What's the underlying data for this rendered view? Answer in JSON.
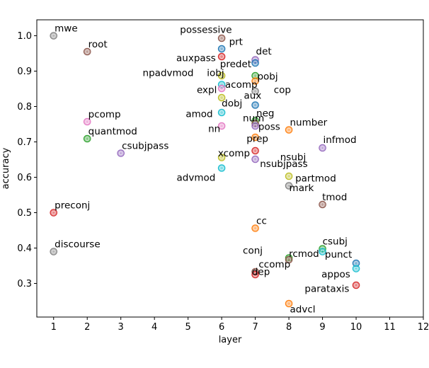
{
  "chart_data": {
    "type": "scatter",
    "xlabel": "layer",
    "ylabel": "accuracy",
    "xlim": [
      0.5,
      12
    ],
    "ylim": [
      0.205,
      1.045
    ],
    "xticks": [
      1,
      2,
      3,
      4,
      5,
      6,
      7,
      8,
      9,
      10,
      11,
      12
    ],
    "yticks": [
      0.3,
      0.4,
      0.5,
      0.6,
      0.7,
      0.8,
      0.9,
      1.0
    ],
    "ytick_labels": [
      "0.3",
      "0.4",
      "0.5",
      "0.6",
      "0.7",
      "0.8",
      "0.9",
      "1.0"
    ],
    "grid": false,
    "points": [
      {
        "label": "mwe",
        "x": 1,
        "y": 1.0,
        "color": "#7f7f7f"
      },
      {
        "label": "root",
        "x": 2,
        "y": 0.955,
        "color": "#8c564b"
      },
      {
        "label": "preconj",
        "x": 1,
        "y": 0.5,
        "color": "#d62728"
      },
      {
        "label": "discourse",
        "x": 1,
        "y": 0.39,
        "color": "#7f7f7f"
      },
      {
        "label": "pcomp",
        "x": 2,
        "y": 0.757,
        "color": "#e377c2"
      },
      {
        "label": "quantmod",
        "x": 2,
        "y": 0.709,
        "color": "#2ca02c"
      },
      {
        "label": "csubjpass",
        "x": 3,
        "y": 0.668,
        "color": "#9467bd"
      },
      {
        "label": "possessive",
        "x": 6,
        "y": 0.993,
        "color": "#8c564b"
      },
      {
        "label": "prt",
        "x": 6,
        "y": 0.963,
        "color": "#1f77b4"
      },
      {
        "label": "auxpass",
        "x": 6,
        "y": 0.941,
        "color": "#d62728"
      },
      {
        "label": "npadvmod",
        "x": 6,
        "y": 0.887,
        "color": "#bcbd22"
      },
      {
        "label": "iobj",
        "x": 6,
        "y": 0.862,
        "color": "#17becf"
      },
      {
        "label": "expl",
        "x": 6,
        "y": 0.851,
        "color": "#e377c2"
      },
      {
        "label": "dobj",
        "x": 6,
        "y": 0.825,
        "color": "#bcbd22"
      },
      {
        "label": "amod",
        "x": 6,
        "y": 0.783,
        "color": "#17becf"
      },
      {
        "label": "nn",
        "x": 6,
        "y": 0.745,
        "color": "#e377c2"
      },
      {
        "label": "xcomp",
        "x": 6,
        "y": 0.656,
        "color": "#bcbd22"
      },
      {
        "label": "advmod",
        "x": 6,
        "y": 0.626,
        "color": "#17becf"
      },
      {
        "label": "det",
        "x": 7,
        "y": 0.932,
        "color": "#9467bd"
      },
      {
        "label": "predet",
        "x": 7,
        "y": 0.923,
        "color": "#1f77b4"
      },
      {
        "label": "pobj",
        "x": 7,
        "y": 0.887,
        "color": "#2ca02c"
      },
      {
        "label": "acomp",
        "x": 7,
        "y": 0.872,
        "color": "#ff7f0e"
      },
      {
        "label": "cop",
        "x": 7,
        "y": 0.843,
        "color": "#7f7f7f"
      },
      {
        "label": "aux",
        "x": 7,
        "y": 0.804,
        "color": "#1f77b4"
      },
      {
        "label": "neg",
        "x": 7,
        "y": 0.76,
        "color": "#2ca02c"
      },
      {
        "label": "num",
        "x": 7,
        "y": 0.752,
        "color": "#8c564b"
      },
      {
        "label": "poss",
        "x": 7,
        "y": 0.745,
        "color": "#9467bd"
      },
      {
        "label": "prep",
        "x": 7,
        "y": 0.713,
        "color": "#ff7f0e"
      },
      {
        "label": "csubj",
        "x": 7,
        "y": 0.675,
        "color": "#d62728"
      },
      {
        "label": "nsubjpass",
        "x": 7,
        "y": 0.651,
        "color": "#9467bd"
      },
      {
        "label": "cc",
        "x": 7,
        "y": 0.456,
        "color": "#ff7f0e"
      },
      {
        "label": "ccomp",
        "x": 7,
        "y": 0.333,
        "color": "#8c564b"
      },
      {
        "label": "dep",
        "x": 7,
        "y": 0.325,
        "color": "#d62728"
      },
      {
        "label": "number",
        "x": 8,
        "y": 0.734,
        "color": "#ff7f0e"
      },
      {
        "label": "nsubj",
        "x": 8,
        "y": 0.603,
        "color": "#bcbd22"
      },
      {
        "label": "mark",
        "x": 8,
        "y": 0.576,
        "color": "#7f7f7f"
      },
      {
        "label": "conj",
        "x": 8,
        "y": 0.372,
        "color": "#2ca02c"
      },
      {
        "label": "rcmod",
        "x": 8,
        "y": 0.367,
        "color": "#8c564b"
      },
      {
        "label": "advcl",
        "x": 8,
        "y": 0.243,
        "color": "#ff7f0e"
      },
      {
        "label": "infmod",
        "x": 9,
        "y": 0.683,
        "color": "#9467bd"
      },
      {
        "label": "partmod",
        "x": 9,
        "y": 0.523,
        "color": "#8c564b"
      },
      {
        "label": "tmod",
        "x": 9,
        "y": 0.398,
        "color": "#2ca02c"
      },
      {
        "label": "punct",
        "x": 9,
        "y": 0.39,
        "color": "#17becf"
      },
      {
        "label": "appos",
        "x": 10,
        "y": 0.357,
        "color": "#1f77b4"
      },
      {
        "label": "parataxis",
        "x": 10,
        "y": 0.342,
        "color": "#17becf"
      },
      {
        "label": "",
        "x": 10,
        "y": 0.295,
        "color": "#d62728"
      }
    ],
    "labels": [
      {
        "text": "mwe",
        "x": 1.03,
        "y": 1.012
      },
      {
        "text": "root",
        "x": 2.03,
        "y": 0.967
      },
      {
        "text": "preconj",
        "x": 1.03,
        "y": 0.512
      },
      {
        "text": "discourse",
        "x": 1.03,
        "y": 0.402
      },
      {
        "text": "pcomp",
        "x": 2.03,
        "y": 0.769
      },
      {
        "text": "quantmod",
        "x": 2.03,
        "y": 0.721
      },
      {
        "text": "csubjpass",
        "x": 3.03,
        "y": 0.68
      },
      {
        "text": "possessive",
        "x": 4.76,
        "y": 1.008
      },
      {
        "text": "prt",
        "x": 6.22,
        "y": 0.974
      },
      {
        "text": "auxpass",
        "x": 4.65,
        "y": 0.928
      },
      {
        "text": "predet",
        "x": 5.95,
        "y": 0.911
      },
      {
        "text": "det",
        "x": 7.02,
        "y": 0.947
      },
      {
        "text": "npadvmod",
        "x": 3.65,
        "y": 0.886
      },
      {
        "text": "iobj",
        "x": 5.56,
        "y": 0.886
      },
      {
        "text": "pobj",
        "x": 7.06,
        "y": 0.876
      },
      {
        "text": "acomp",
        "x": 6.1,
        "y": 0.853
      },
      {
        "text": "expl",
        "x": 5.26,
        "y": 0.838
      },
      {
        "text": "cop",
        "x": 7.55,
        "y": 0.838
      },
      {
        "text": "aux",
        "x": 6.66,
        "y": 0.822
      },
      {
        "text": "dobj",
        "x": 6.0,
        "y": 0.8
      },
      {
        "text": "amod",
        "x": 4.93,
        "y": 0.77
      },
      {
        "text": "neg",
        "x": 7.03,
        "y": 0.772
      },
      {
        "text": "num",
        "x": 6.63,
        "y": 0.758
      },
      {
        "text": "number",
        "x": 8.03,
        "y": 0.746
      },
      {
        "text": "poss",
        "x": 7.09,
        "y": 0.734
      },
      {
        "text": "nn",
        "x": 5.6,
        "y": 0.728
      },
      {
        "text": "prep",
        "x": 6.74,
        "y": 0.7
      },
      {
        "text": "infmod",
        "x": 9.02,
        "y": 0.697
      },
      {
        "text": "nsubj",
        "x": 7.74,
        "y": 0.648
      },
      {
        "text": "xcomp",
        "x": 5.89,
        "y": 0.659
      },
      {
        "text": "nsubjpass",
        "x": 7.14,
        "y": 0.629
      },
      {
        "text": "partmod",
        "x": 8.19,
        "y": 0.588
      },
      {
        "text": "advmod",
        "x": 4.66,
        "y": 0.59
      },
      {
        "text": "mark",
        "x": 8.01,
        "y": 0.561
      },
      {
        "text": "tmod",
        "x": 8.99,
        "y": 0.535
      },
      {
        "text": "cc",
        "x": 7.03,
        "y": 0.468
      },
      {
        "text": "csubj",
        "x": 9.0,
        "y": 0.41
      },
      {
        "text": "conj",
        "x": 6.63,
        "y": 0.384
      },
      {
        "text": "rcmod",
        "x": 8.0,
        "y": 0.375
      },
      {
        "text": "punct",
        "x": 9.07,
        "y": 0.373
      },
      {
        "text": "ccomp",
        "x": 7.1,
        "y": 0.345
      },
      {
        "text": "dep",
        "x": 6.9,
        "y": 0.324
      },
      {
        "text": "appos",
        "x": 8.97,
        "y": 0.317
      },
      {
        "text": "parataxis",
        "x": 8.47,
        "y": 0.276
      },
      {
        "text": "advcl",
        "x": 8.03,
        "y": 0.218
      }
    ]
  }
}
